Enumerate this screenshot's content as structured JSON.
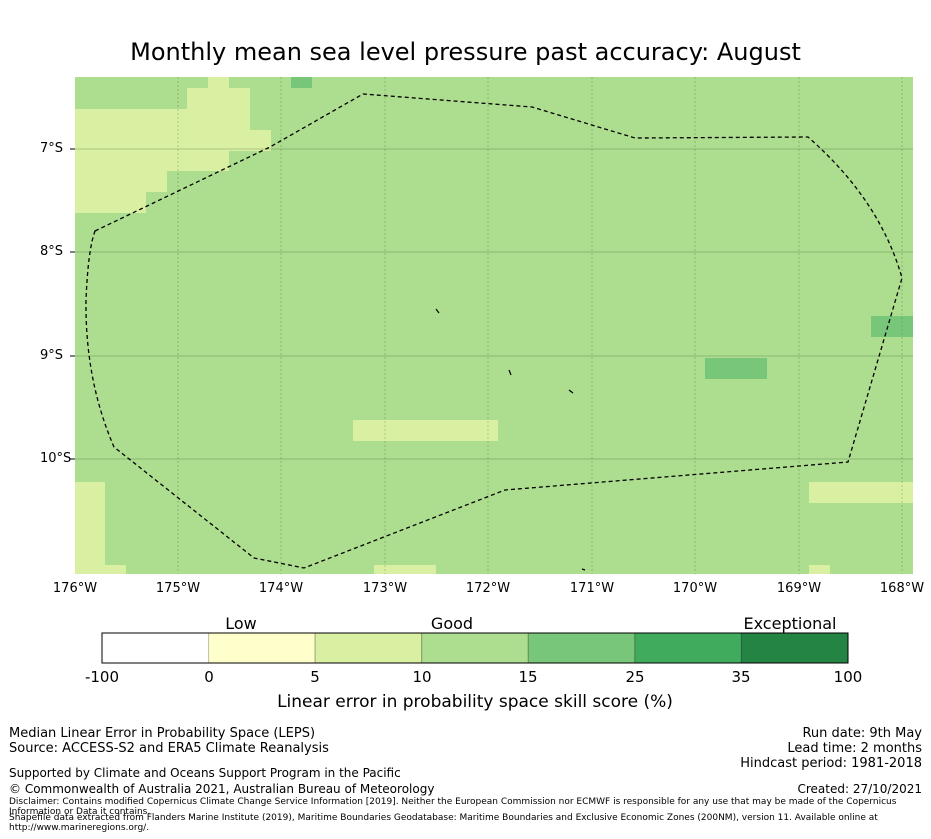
{
  "title": "Monthly mean sea level pressure past accuracy: August",
  "map": {
    "lat_labels": [
      "7°S",
      "8°S",
      "9°S",
      "10°S"
    ],
    "lon_labels": [
      "176°W",
      "175°W",
      "174°W",
      "173°W",
      "172°W",
      "171°W",
      "170°W",
      "169°W",
      "168°W"
    ]
  },
  "colorbar": {
    "categories": [
      "Low",
      "Good",
      "Exceptional"
    ],
    "ticks": [
      "-100",
      "0",
      "5",
      "10",
      "15",
      "25",
      "35",
      "100"
    ],
    "colors": [
      "#ffffff",
      "#ffffcc",
      "#d9f0a3",
      "#addd8e",
      "#78c679",
      "#41ab5d",
      "#238443"
    ],
    "label": "Linear error in probability space skill score (%)"
  },
  "footer": {
    "left_line1": "Median Linear Error in Probability Space (LEPS)",
    "left_line2": "Source: ACCESS-S2 and ERA5 Climate Reanalysis",
    "support": "Supported by Climate and Oceans Support Program in the Pacific",
    "copyright": "© Commonwealth of Australia 2021, Australian Bureau of Meteorology",
    "run_date": "Run date: 9th May",
    "lead_time": "Lead time: 2 months",
    "hindcast": "Hindcast period: 1981-2018",
    "created": "Created: 27/10/2021",
    "disclaimer": "Disclaimer: Contains modified Copernicus Climate Change Service Information [2019]. Neither the European Commission nor ECMWF is responsible for any use that may be made of the Copernicus Information or Data it contains.",
    "shapefile": "Shapefile data extracted from Flanders Marine Institute (2019), Maritime Boundaries Geodatabase: Maritime Boundaries and Exclusive Economic Zones (200NM), version 11. Available online at http://www.marineregions.org/."
  }
}
